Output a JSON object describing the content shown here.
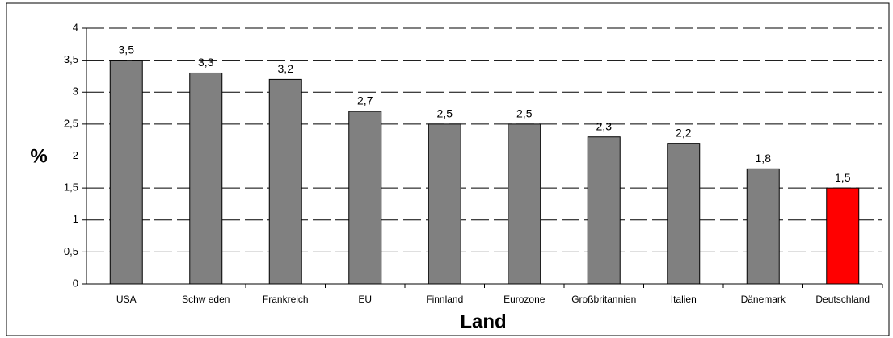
{
  "chart_data": {
    "type": "bar",
    "categories": [
      "USA",
      "Schw eden",
      "Frankreich",
      "EU",
      "Finnland",
      "Eurozone",
      "Großbritannien",
      "Italien",
      "Dänemark",
      "Deutschland"
    ],
    "values": [
      3.5,
      3.3,
      3.2,
      2.7,
      2.5,
      2.5,
      2.3,
      2.2,
      1.8,
      1.5
    ],
    "value_labels": [
      "3,5",
      "3,3",
      "3,2",
      "2,7",
      "2,5",
      "2,5",
      "2,3",
      "2,2",
      "1,8",
      "1,5"
    ],
    "colors": [
      "#808080",
      "#808080",
      "#808080",
      "#808080",
      "#808080",
      "#808080",
      "#808080",
      "#808080",
      "#808080",
      "#ff0000"
    ],
    "ylim": [
      0,
      4
    ],
    "yticks": [
      0,
      {
        "value": 0.5,
        "label": "0,5"
      },
      1,
      {
        "value": 1.5,
        "label": "1,5"
      },
      2,
      {
        "value": 2.5,
        "label": "2,5"
      },
      3,
      {
        "value": 3.5,
        "label": "3,5"
      },
      4
    ],
    "ylabel": "%",
    "xlabel": "Land",
    "grid": true
  }
}
